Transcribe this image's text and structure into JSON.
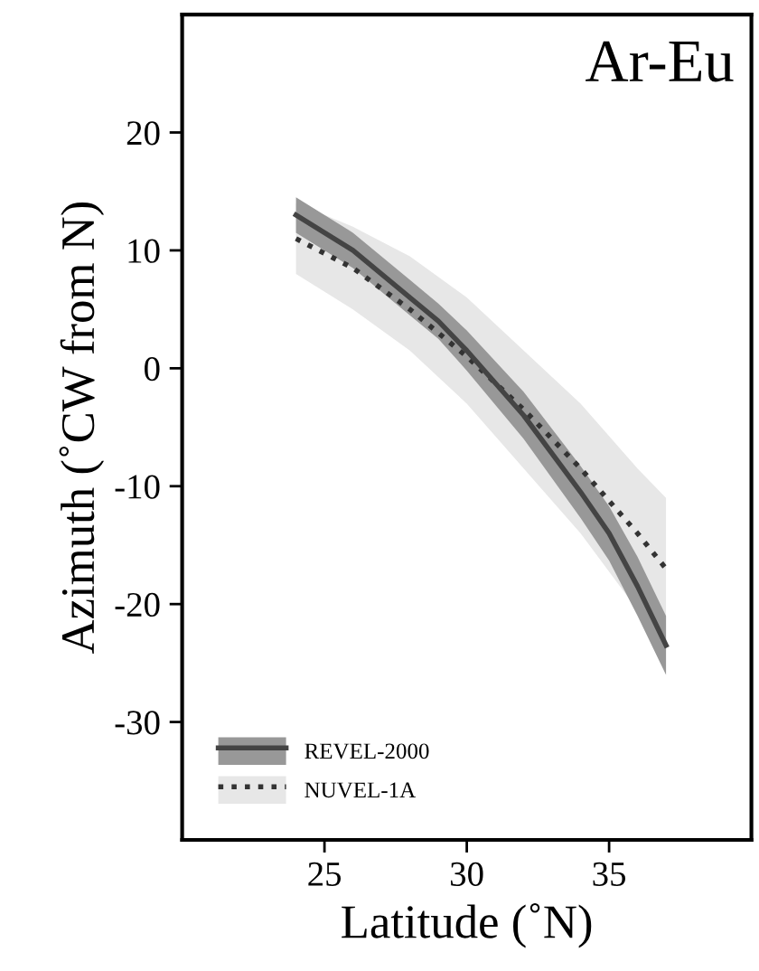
{
  "chart_data": {
    "type": "line",
    "title": "Ar-Eu",
    "xlabel": "Latitude (˚N)",
    "ylabel": "Azimuth (˚CW from N)",
    "xlim": [
      20,
      40
    ],
    "ylim": [
      -40,
      30
    ],
    "xticks": [
      25,
      30,
      35
    ],
    "yticks": [
      20,
      10,
      0,
      -10,
      -20,
      -30
    ],
    "grid": false,
    "legend": "bottom left",
    "marker": "none",
    "series": [
      {
        "name": "NUVEL-1A",
        "color": "#333333",
        "line_style": "dotted",
        "x": [
          24,
          26,
          28,
          30,
          32,
          34,
          36,
          37
        ],
        "values": [
          11,
          8.5,
          5,
          1,
          -3.5,
          -8.5,
          -14,
          -17
        ],
        "lower": [
          8,
          5,
          1.5,
          -3,
          -8.5,
          -14,
          -20.5,
          -24
        ],
        "upper": [
          14,
          12,
          9.5,
          6,
          1.5,
          -3,
          -8.5,
          -11
        ]
      },
      {
        "name": "REVEL-2000",
        "color": "#444444",
        "line_style": "solid",
        "x": [
          24,
          26,
          28,
          29,
          30,
          32,
          34,
          35,
          36,
          37
        ],
        "values": [
          13,
          10,
          6,
          4,
          1.5,
          -4,
          -10.5,
          -14,
          -18.5,
          -23.5
        ],
        "lower": [
          11.5,
          8.5,
          4.5,
          2.5,
          -0.2,
          -6,
          -12.7,
          -16.3,
          -21,
          -26
        ],
        "upper": [
          14.5,
          11.5,
          7.5,
          5.5,
          3.2,
          -2,
          -8.3,
          -11.7,
          -16,
          -21
        ]
      }
    ]
  }
}
